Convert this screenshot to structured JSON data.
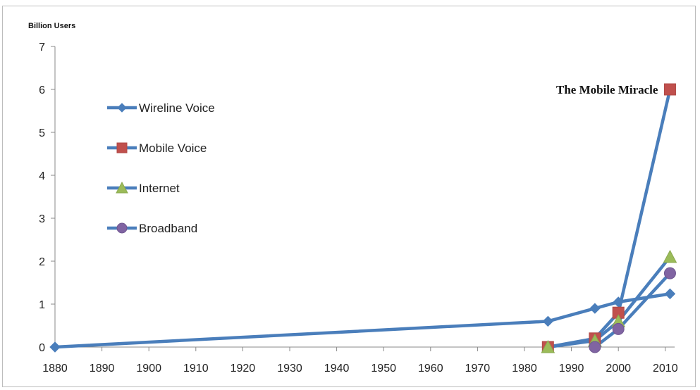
{
  "chart_data": {
    "type": "line",
    "ylabel": "Billion Users",
    "xlabel": "",
    "xlim": [
      1880,
      2012
    ],
    "ylim": [
      0,
      7
    ],
    "x_ticks": [
      1880,
      1890,
      1900,
      1910,
      1920,
      1930,
      1940,
      1950,
      1960,
      1970,
      1980,
      1990,
      2000,
      2010
    ],
    "y_ticks": [
      0,
      1,
      2,
      3,
      4,
      5,
      6,
      7
    ],
    "grid": false,
    "legend_position": "left",
    "series": [
      {
        "name": "Wireline Voice",
        "color": "#4a7ebb",
        "marker": "diamond",
        "points": [
          [
            1880,
            0
          ],
          [
            1985,
            0.6
          ],
          [
            1995,
            0.9
          ],
          [
            2000,
            1.05
          ],
          [
            2011,
            1.24
          ]
        ]
      },
      {
        "name": "Mobile Voice",
        "color": "#4a7ebb",
        "marker_color": "#c0504d",
        "marker": "square",
        "points": [
          [
            1985,
            0
          ],
          [
            1995,
            0.2
          ],
          [
            2000,
            0.8
          ],
          [
            2011,
            6.0
          ]
        ]
      },
      {
        "name": "Internet",
        "color": "#4a7ebb",
        "marker_color": "#9bbb59",
        "marker": "triangle",
        "points": [
          [
            1985,
            0
          ],
          [
            1995,
            0.15
          ],
          [
            2000,
            0.6
          ],
          [
            2011,
            2.1
          ]
        ]
      },
      {
        "name": "Broadband",
        "color": "#4a7ebb",
        "marker_color": "#8064a2",
        "marker": "circle",
        "points": [
          [
            1995,
            0
          ],
          [
            2000,
            0.42
          ],
          [
            2011,
            1.72
          ]
        ]
      }
    ],
    "annotations": [
      {
        "text": "The Mobile Miracle",
        "x": 2011,
        "y": 6.0
      }
    ]
  }
}
